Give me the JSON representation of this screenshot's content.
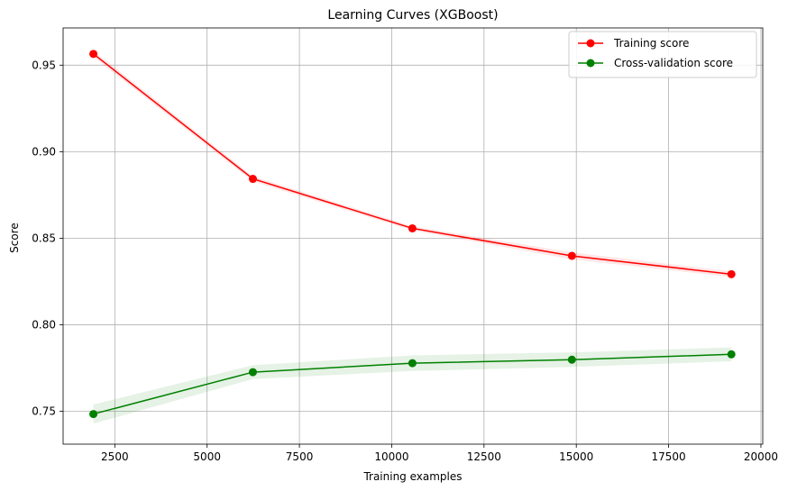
{
  "chart_data": {
    "type": "line",
    "title": "Learning Curves (XGBoost)",
    "xlabel": "Training examples",
    "ylabel": "Score",
    "xlim": [
      1100,
      20050
    ],
    "ylim": [
      0.731,
      0.9715
    ],
    "xticks": [
      2500,
      5000,
      7500,
      10000,
      12500,
      15000,
      17500,
      20000
    ],
    "xtick_labels": [
      "2500",
      "5000",
      "7500",
      "10000",
      "12500",
      "15000",
      "17500",
      "20000"
    ],
    "yticks": [
      0.75,
      0.8,
      0.85,
      0.9,
      0.95
    ],
    "ytick_labels": [
      "0.75",
      "0.80",
      "0.85",
      "0.90",
      "0.95"
    ],
    "grid": true,
    "legend_position": "top-right",
    "x": [
      1920,
      6240,
      10560,
      14880,
      19200
    ],
    "series": [
      {
        "name": "Training score",
        "color": "#ff0000",
        "band_color": "#ff0000",
        "marker": "circle",
        "values": [
          0.9565,
          0.8843,
          0.8557,
          0.8398,
          0.8292
        ],
        "std": [
          0.0018,
          0.0015,
          0.0012,
          0.002,
          0.0016
        ]
      },
      {
        "name": "Cross-validation score",
        "color": "#008000",
        "band_color": "#008000",
        "marker": "circle",
        "values": [
          0.7484,
          0.7726,
          0.7778,
          0.7798,
          0.7829
        ],
        "std": [
          0.0055,
          0.004,
          0.0045,
          0.0042,
          0.004
        ]
      }
    ]
  }
}
